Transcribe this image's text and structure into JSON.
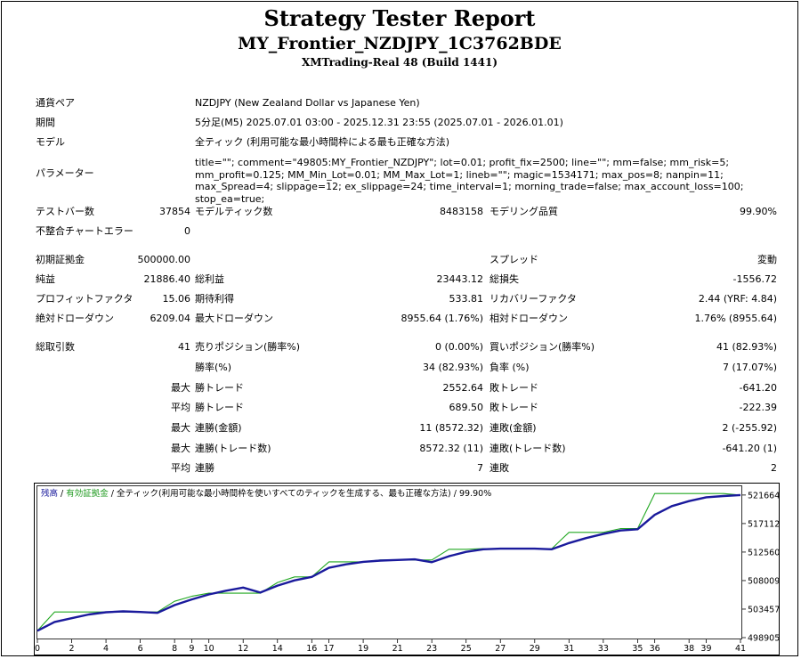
{
  "report": {
    "title": "Strategy Tester Report",
    "ea_name": "MY_Frontier_NZDJPY_1C3762BDE",
    "server": "XMTrading-Real 48 (Build 1441)"
  },
  "info": {
    "symbol_label": "通貨ペア",
    "symbol_value": "NZDJPY (New Zealand Dollar vs Japanese Yen)",
    "period_label": "期間",
    "period_value": "5分足(M5) 2025.07.01 03:00 - 2025.12.31 23:55 (2025.07.01 - 2026.01.01)",
    "model_label": "モデル",
    "model_value": "全ティック (利用可能な最小時間枠による最も正確な方法)",
    "params_label": "パラメーター",
    "params_value": "title=\"\"; comment=\"49805:MY_Frontier_NZDJPY\"; lot=0.01; profit_fix=2500; line=\"\"; mm=false; mm_risk=5; mm_profit=0.125; MM_Min_Lot=0.01; MM_Max_Lot=1; lineb=\"\"; magic=1534171; max_pos=8; nanpin=11; max_Spread=4; slippage=12; ex_slippage=24; time_interval=1; morning_trade=false; max_account_loss=100; stop_ea=true;"
  },
  "stats": {
    "bars_label": "テストバー数",
    "bars_value": "37854",
    "ticks_label": "モデルティック数",
    "ticks_value": "8483158",
    "quality_label": "モデリング品質",
    "quality_value": "99.90%",
    "mismatch_label": "不整合チャートエラー",
    "mismatch_value": "0",
    "deposit_label": "初期証拠金",
    "deposit_value": "500000.00",
    "spread_label": "スプレッド",
    "spread_value": "変動",
    "net_label": "純益",
    "net_value": "21886.40",
    "gross_profit_label": "総利益",
    "gross_profit_value": "23443.12",
    "gross_loss_label": "総損失",
    "gross_loss_value": "-1556.72",
    "pf_label": "プロフィットファクタ",
    "pf_value": "15.06",
    "expected_label": "期待利得",
    "expected_value": "533.81",
    "recovery_label": "リカバリーファクタ",
    "recovery_value": "2.44 (YRF: 4.84)",
    "abs_dd_label": "絶対ドローダウン",
    "abs_dd_value": "6209.04",
    "max_dd_label": "最大ドローダウン",
    "max_dd_value": "8955.64 (1.76%)",
    "rel_dd_label": "相対ドローダウン",
    "rel_dd_value": "1.76% (8955.64)",
    "total_trades_label": "総取引数",
    "total_trades_value": "41",
    "short_label": "売りポジション(勝率%)",
    "short_value": "0 (0.00%)",
    "long_label": "買いポジション(勝率%)",
    "long_value": "41 (82.93%)",
    "win_rate_label": "勝率(%)",
    "win_rate_value": "34 (82.93%)",
    "loss_rate_label": "負率 (%)",
    "loss_rate_value": "7 (17.07%)",
    "max_word": "最大",
    "avg_word": "平均",
    "max_win_label": "勝トレード",
    "max_win_value": "2552.64",
    "max_loss_label": "敗トレード",
    "max_loss_value": "-641.20",
    "avg_win_label": "勝トレード",
    "avg_win_value": "689.50",
    "avg_loss_label": "敗トレード",
    "avg_loss_value": "-222.39",
    "consec_wins_amt_label": "連勝(金額)",
    "consec_wins_amt_value": "11 (8572.32)",
    "consec_losses_amt_label": "連敗(金額)",
    "consec_losses_amt_value": "2 (-255.92)",
    "consec_wins_cnt_label": "連勝(トレード数)",
    "consec_wins_cnt_value": "8572.32 (11)",
    "consec_losses_cnt_label": "連敗(トレード数)",
    "consec_losses_cnt_value": "-641.20 (1)",
    "avg_consec_wins_label": "連勝",
    "avg_consec_wins_value": "7",
    "avg_consec_losses_label": "連敗",
    "avg_consec_losses_value": "2"
  },
  "legend": {
    "balance": "残高",
    "sep1": " / ",
    "equity": "有効証拠金",
    "sep2": " / ",
    "model": "全ティック(利用可能な最小時間枠を使いすべてのティックを生成する、最も正確な方法)",
    "quality": " / 99.90%"
  },
  "chart_data": {
    "type": "line",
    "x_ticks": [
      0,
      2,
      4,
      6,
      8,
      9,
      10,
      12,
      14,
      16,
      17,
      19,
      21,
      23,
      25,
      27,
      29,
      31,
      33,
      35,
      36,
      38,
      39,
      41
    ],
    "y_ticks": [
      498905,
      503457,
      508009,
      512560,
      517112,
      521664
    ],
    "xlim": [
      0,
      41
    ],
    "ylim": [
      498905,
      522500
    ],
    "series": [
      {
        "name": "残高",
        "color": "#1a1a9c",
        "x": [
          0,
          1,
          2,
          3,
          4,
          5,
          6,
          7,
          8,
          9,
          10,
          11,
          12,
          13,
          14,
          15,
          16,
          17,
          18,
          19,
          20,
          21,
          22,
          23,
          24,
          25,
          26,
          27,
          28,
          29,
          30,
          31,
          32,
          33,
          34,
          35,
          36,
          37,
          38,
          39,
          40,
          41
        ],
        "y": [
          500000,
          501400,
          502000,
          502600,
          502950,
          503100,
          503000,
          502850,
          504100,
          505000,
          505800,
          506400,
          506900,
          506100,
          507200,
          508050,
          508600,
          510050,
          510600,
          511000,
          511200,
          511300,
          511400,
          510950,
          511900,
          512600,
          513000,
          513100,
          513100,
          513100,
          513000,
          514000,
          514800,
          515450,
          516000,
          516200,
          518500,
          519900,
          520700,
          521300,
          521500,
          521664
        ]
      },
      {
        "name": "有効証拠金",
        "color": "#22a822",
        "x": [
          0,
          1,
          2,
          3,
          4,
          5,
          6,
          7,
          8,
          9,
          10,
          11,
          12,
          13,
          14,
          15,
          16,
          17,
          18,
          19,
          20,
          21,
          22,
          23,
          24,
          25,
          26,
          27,
          28,
          29,
          30,
          31,
          32,
          33,
          34,
          35,
          36,
          37,
          38,
          39,
          40,
          41
        ],
        "y": [
          500000,
          503000,
          503000,
          503000,
          503000,
          503000,
          503000,
          503000,
          504700,
          505500,
          506000,
          506000,
          506000,
          506000,
          507700,
          508600,
          508600,
          511000,
          511000,
          511000,
          511300,
          511300,
          511300,
          511300,
          513000,
          513000,
          513100,
          513100,
          513100,
          513100,
          513100,
          515700,
          515700,
          515700,
          516300,
          516300,
          521900,
          521900,
          521900,
          521900,
          521900,
          521664
        ]
      }
    ]
  }
}
